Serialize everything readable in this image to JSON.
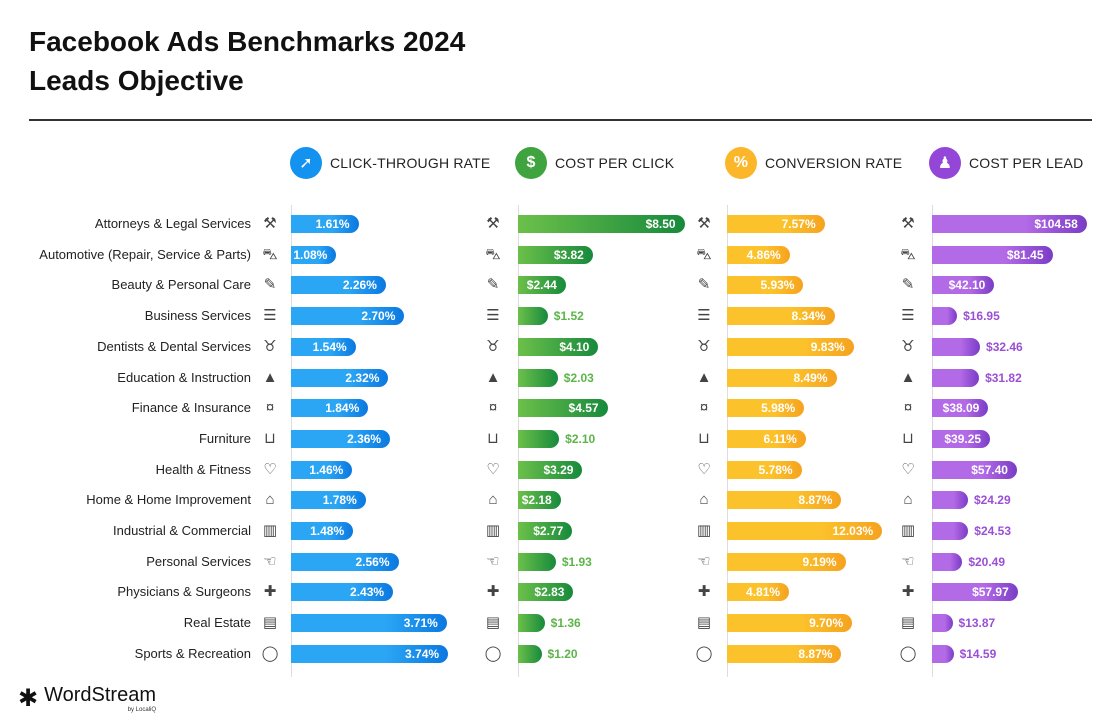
{
  "title": [
    "Facebook Ads Benchmarks 2024",
    "Leads Objective"
  ],
  "logo": {
    "name": "WordStream",
    "sub": "by LocaliQ"
  },
  "chart_data": {
    "type": "bar",
    "orientation": "horizontal",
    "categories": [
      "Attorneys & Legal Services",
      "Automotive (Repair, Service & Parts)",
      "Beauty & Personal Care",
      "Business Services",
      "Dentists & Dental Services",
      "Education & Instruction",
      "Finance & Insurance",
      "Furniture",
      "Health & Fitness",
      "Home & Home Improvement",
      "Industrial & Commercial",
      "Personal Services",
      "Physicians & Surgeons",
      "Real Estate",
      "Sports & Recreation"
    ],
    "icons": [
      "gavel-icon",
      "car-icon",
      "brush-icon",
      "document-icon",
      "tooth-icon",
      "graduation-cap-icon",
      "piggy-bank-icon",
      "sofa-icon",
      "heart-icon",
      "house-icon",
      "factory-icon",
      "hand-icon",
      "medical-cross-icon",
      "storefront-icon",
      "ball-icon"
    ],
    "series": [
      {
        "name": "CLICK-THROUGH RATE",
        "icon": "cursor-click-icon",
        "color": "#1392f0",
        "format": "pct",
        "values": [
          1.61,
          1.08,
          2.26,
          2.7,
          1.54,
          2.32,
          1.84,
          2.36,
          1.46,
          1.78,
          1.48,
          2.56,
          2.43,
          3.71,
          3.74
        ]
      },
      {
        "name": "COST PER CLICK",
        "icon": "cursor-dollar-icon",
        "color": "#3fa33f",
        "format": "usd",
        "values": [
          8.5,
          3.82,
          2.44,
          1.52,
          4.1,
          2.03,
          4.57,
          2.1,
          3.29,
          2.18,
          2.77,
          1.93,
          2.83,
          1.36,
          1.2
        ]
      },
      {
        "name": "CONVERSION RATE",
        "icon": "percent-cycle-icon",
        "color": "#fbb62a",
        "format": "pct",
        "values": [
          7.57,
          4.86,
          5.93,
          8.34,
          9.83,
          8.49,
          5.98,
          6.11,
          5.78,
          8.87,
          12.03,
          9.19,
          4.81,
          9.7,
          8.87
        ]
      },
      {
        "name": "COST PER LEAD",
        "icon": "person-dollar-icon",
        "color": "#9446d8",
        "format": "usd",
        "values": [
          104.58,
          81.45,
          42.1,
          16.95,
          32.46,
          31.82,
          38.09,
          39.25,
          57.4,
          24.29,
          24.53,
          20.49,
          57.97,
          13.87,
          14.59
        ]
      }
    ]
  }
}
